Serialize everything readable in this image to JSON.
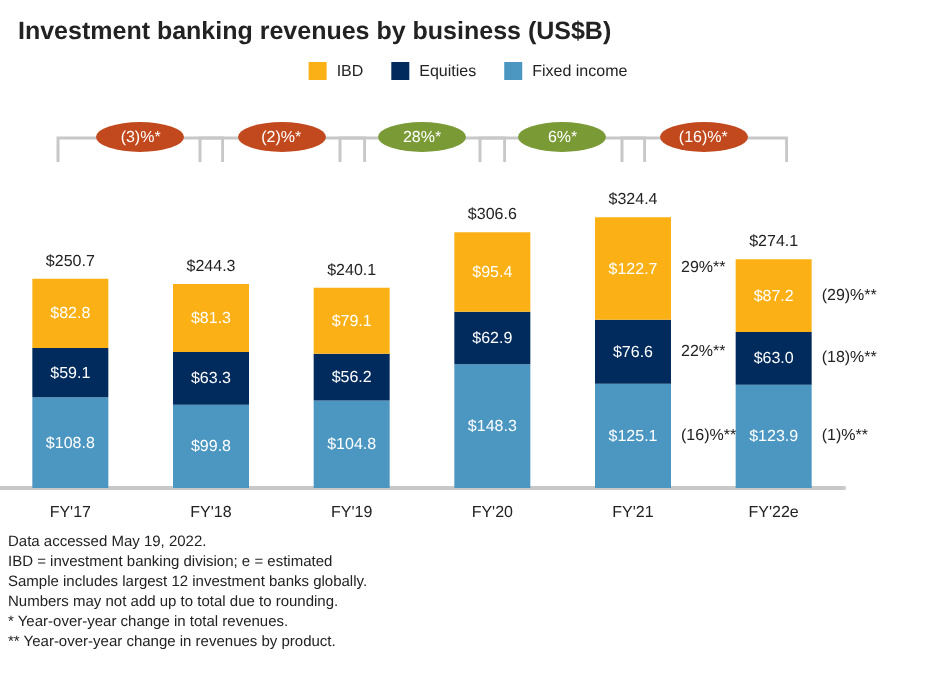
{
  "chart_data": {
    "type": "bar",
    "title": "Investment banking revenues by business (US$B)",
    "stacked": true,
    "legend": "top",
    "grid": false,
    "categories": [
      "FY'17",
      "FY'18",
      "FY'19",
      "FY'20",
      "FY'21",
      "FY'22e"
    ],
    "series": [
      {
        "name": "Fixed income",
        "color": "#4c97c2",
        "values": [
          108.8,
          99.8,
          104.8,
          148.3,
          125.1,
          123.9
        ],
        "value_labels": [
          "$108.8",
          "$99.8",
          "$104.8",
          "$148.3",
          "$125.1",
          "$123.9"
        ]
      },
      {
        "name": "Equities",
        "color": "#002b5c",
        "values": [
          59.1,
          63.3,
          56.2,
          62.9,
          76.6,
          63.0
        ],
        "value_labels": [
          "$59.1",
          "$63.3",
          "$56.2",
          "$62.9",
          "$76.6",
          "$63.0"
        ]
      },
      {
        "name": "IBD",
        "color": "#fbb116",
        "values": [
          82.8,
          81.3,
          79.1,
          95.4,
          122.7,
          87.2
        ],
        "value_labels": [
          "$82.8",
          "$81.3",
          "$79.1",
          "$95.4",
          "$122.7",
          "$87.2"
        ]
      }
    ],
    "totals": [
      "$250.7",
      "$244.3",
      "$240.1",
      "$306.6",
      "$324.4",
      "$274.1"
    ],
    "annotations": [
      "(3)%*",
      "(2)%*",
      "28%*",
      "6%*",
      "(16)%*",
      "29%**",
      "22%**",
      "(16)%**",
      "(29)%**",
      "(18)%**",
      "(1)%**",
      "Data accessed May 19, 2022.",
      "IBD = investment banking division; e = estimated",
      "Sample includes largest 12 investment banks globally.",
      "Numbers may not add up to total due to rounding.",
      "* Year-over-year change in total revenues.",
      "** Year-over-year change in revenues by product."
    ]
  }
}
